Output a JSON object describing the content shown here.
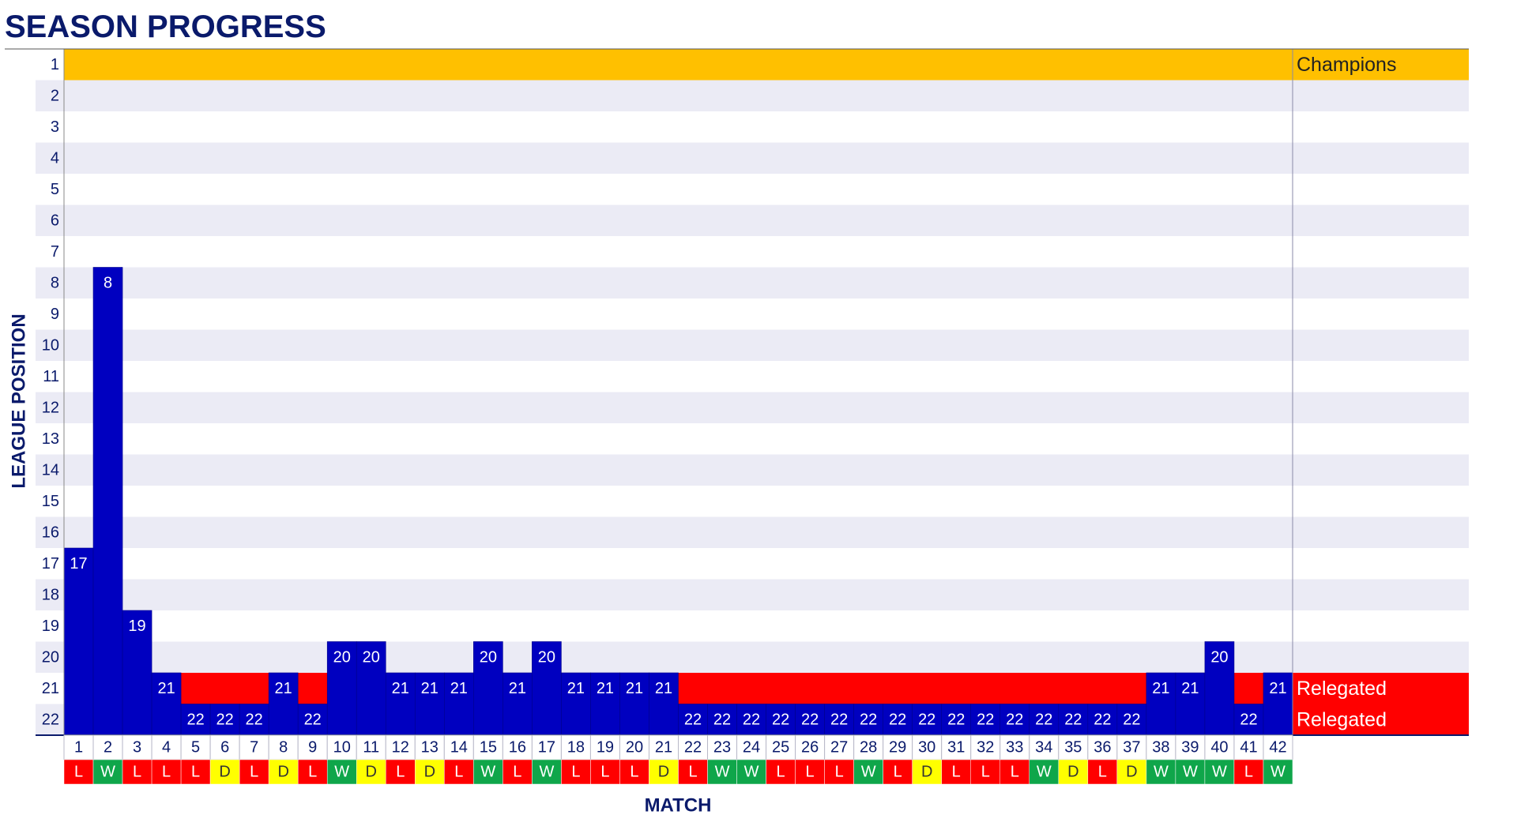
{
  "chart_data": {
    "type": "bar",
    "title": "SEASON PROGRESS",
    "y_label": "LEAGUE POSITION",
    "x_label": "MATCH",
    "categories": [
      1,
      2,
      3,
      4,
      5,
      6,
      7,
      8,
      9,
      10,
      11,
      12,
      13,
      14,
      15,
      16,
      17,
      18,
      19,
      20,
      21,
      22,
      23,
      24,
      25,
      26,
      27,
      28,
      29,
      30,
      31,
      32,
      33,
      34,
      35,
      36,
      37,
      38,
      39,
      40,
      41,
      42
    ],
    "values": [
      17,
      8,
      19,
      21,
      22,
      22,
      22,
      21,
      22,
      20,
      20,
      21,
      21,
      21,
      20,
      21,
      20,
      21,
      21,
      21,
      21,
      22,
      22,
      22,
      22,
      22,
      22,
      22,
      22,
      22,
      22,
      22,
      22,
      22,
      22,
      22,
      22,
      21,
      21,
      20,
      22,
      21
    ],
    "results": [
      "L",
      "W",
      "L",
      "L",
      "L",
      "D",
      "L",
      "D",
      "L",
      "W",
      "D",
      "L",
      "D",
      "L",
      "W",
      "L",
      "W",
      "L",
      "L",
      "L",
      "D",
      "L",
      "W",
      "W",
      "L",
      "L",
      "L",
      "W",
      "L",
      "D",
      "L",
      "L",
      "L",
      "W",
      "D",
      "L",
      "D",
      "W",
      "W",
      "W",
      "L",
      "W"
    ],
    "result_colors": {
      "W": "#0fa64a",
      "D": "#ffff00",
      "L": "#ff0000"
    },
    "color": "#0000c0",
    "ylim": [
      22,
      1
    ],
    "yticks": [
      1,
      2,
      3,
      4,
      5,
      6,
      7,
      8,
      9,
      10,
      11,
      12,
      13,
      14,
      15,
      16,
      17,
      18,
      19,
      20,
      21,
      22
    ],
    "bands": [
      {
        "label": "Champions",
        "position": 1,
        "color": "#ffc000"
      },
      {
        "label": "Relegated",
        "position": 21,
        "color": "#ff0000"
      },
      {
        "label": "Relegated",
        "position": 22,
        "color": "#ff0000"
      }
    ]
  }
}
